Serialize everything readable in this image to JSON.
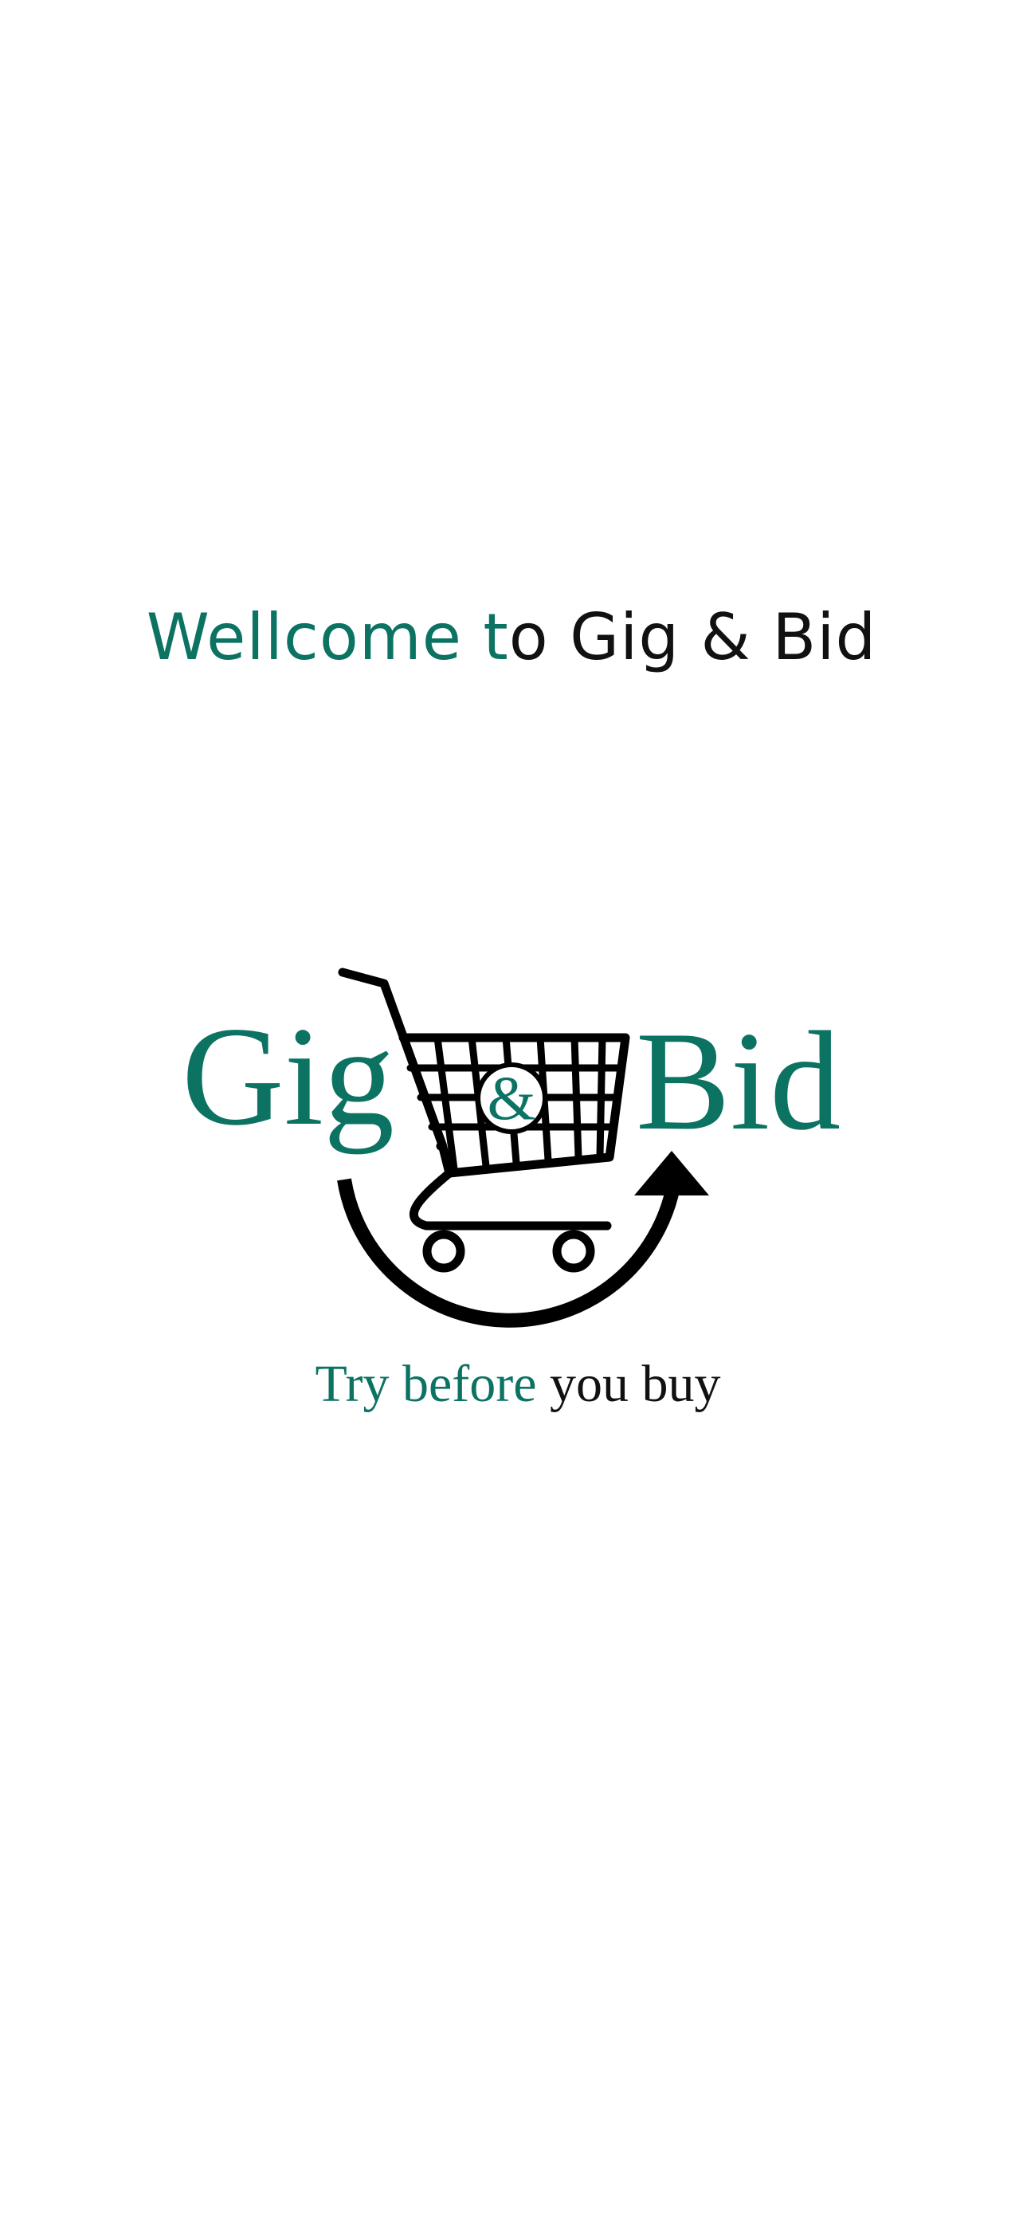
{
  "welcome": {
    "part1": "Wellcome t",
    "part2": "o Gig & Bid"
  },
  "logo": {
    "word_left": "Gig",
    "ampersand": "&",
    "word_right": "Bid",
    "tagline_part1": "Try before",
    "tagline_part2": " you buy"
  },
  "colors": {
    "brand_green": "#0c7363",
    "text_dark": "#111111",
    "background": "#ffffff"
  },
  "icons": {
    "logo_graphic": "shopping-cart-icon"
  }
}
